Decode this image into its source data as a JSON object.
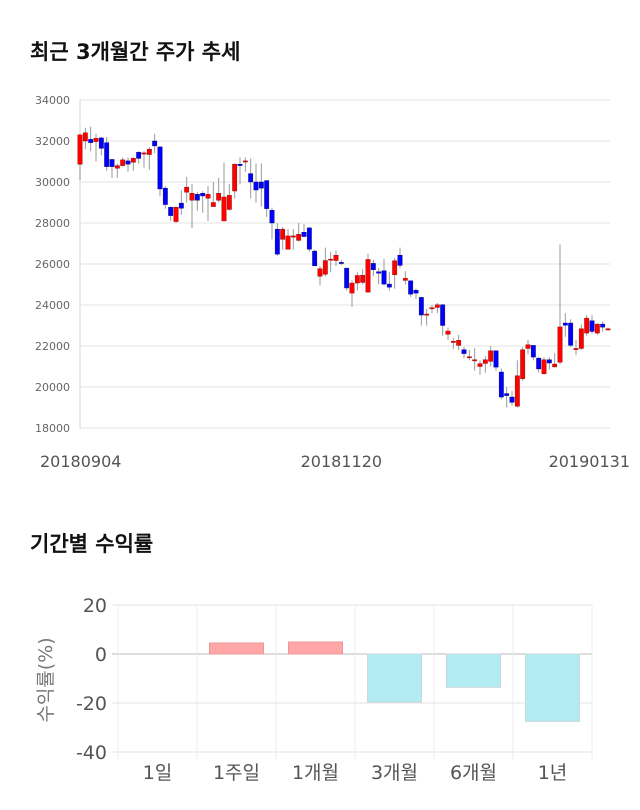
{
  "section1": {
    "title": "최근 3개월간 주가 추세"
  },
  "section2": {
    "title": "기간별 수익률"
  },
  "chart_data": [
    {
      "type": "candlestick",
      "title": "최근 3개월간 주가 추세",
      "ylim": [
        18000,
        34000
      ],
      "yticks": [
        18000,
        20000,
        22000,
        24000,
        26000,
        28000,
        30000,
        32000,
        34000
      ],
      "xtick_labels": [
        {
          "index": 0,
          "label": "20180904"
        },
        {
          "index": 49,
          "label": "20181120"
        },
        {
          "index": 99,
          "label": "20190131"
        }
      ],
      "grid": true,
      "colors": {
        "up": "#ff0000",
        "down": "#0000ff",
        "wick": "#999999"
      },
      "ohlc": [
        [
          30870,
          32350,
          30100,
          32300
        ],
        [
          32000,
          32650,
          31600,
          32400
        ],
        [
          32080,
          32700,
          31500,
          31920
        ],
        [
          31970,
          32350,
          31000,
          32130
        ],
        [
          32150,
          32200,
          31300,
          31640
        ],
        [
          31920,
          32200,
          30550,
          30750
        ],
        [
          31100,
          31100,
          30200,
          30750
        ],
        [
          30670,
          30900,
          30200,
          30800
        ],
        [
          30800,
          31200,
          30750,
          31080
        ],
        [
          31030,
          31200,
          30500,
          30870
        ],
        [
          30960,
          31200,
          30550,
          31160
        ],
        [
          31450,
          31500,
          30900,
          31150
        ],
        [
          31400,
          31500,
          30700,
          31420
        ],
        [
          31340,
          31700,
          30600,
          31600
        ],
        [
          32000,
          32350,
          31400,
          31760
        ],
        [
          31710,
          31750,
          29300,
          29660
        ],
        [
          29700,
          29800,
          28700,
          28900
        ],
        [
          28770,
          28800,
          28100,
          28360
        ],
        [
          28070,
          28800,
          28000,
          28770
        ],
        [
          28970,
          29600,
          28400,
          28720
        ],
        [
          29500,
          30250,
          29000,
          29750
        ],
        [
          29110,
          29900,
          27750,
          29450
        ],
        [
          29400,
          29500,
          28600,
          29110
        ],
        [
          29450,
          29550,
          28500,
          29320
        ],
        [
          29210,
          29800,
          28100,
          29400
        ],
        [
          28800,
          30000,
          28800,
          29000
        ],
        [
          29110,
          30200,
          29000,
          29450
        ],
        [
          28100,
          30950,
          28100,
          29270
        ],
        [
          28660,
          29900,
          28600,
          29350
        ],
        [
          29560,
          30900,
          29200,
          30870
        ],
        [
          30870,
          31200,
          29900,
          30800
        ],
        [
          31030,
          31200,
          30500,
          31030
        ],
        [
          30410,
          31150,
          29200,
          30000
        ],
        [
          30000,
          30900,
          29000,
          29610
        ],
        [
          30000,
          30900,
          28800,
          29700
        ],
        [
          30070,
          30100,
          28300,
          28700
        ],
        [
          28620,
          28750,
          27200,
          28000
        ],
        [
          27700,
          28000,
          26400,
          26480
        ],
        [
          27200,
          27800,
          26700,
          27700
        ],
        [
          26720,
          27700,
          26700,
          27370
        ],
        [
          27370,
          27700,
          26700,
          27370
        ],
        [
          27150,
          28000,
          27100,
          27450
        ],
        [
          27550,
          27950,
          27300,
          27340
        ],
        [
          27760,
          27800,
          26600,
          26720
        ],
        [
          26630,
          26700,
          25900,
          25910
        ],
        [
          25400,
          25900,
          24950,
          25770
        ],
        [
          25500,
          26800,
          25400,
          26170
        ],
        [
          26240,
          26600,
          25600,
          26240
        ],
        [
          26170,
          26650,
          25900,
          26430
        ],
        [
          26080,
          26200,
          25950,
          26030
        ],
        [
          25800,
          25800,
          24700,
          24830
        ],
        [
          24580,
          25200,
          23900,
          25070
        ],
        [
          25070,
          25600,
          24700,
          25440
        ],
        [
          25100,
          25750,
          25000,
          25450
        ],
        [
          24630,
          26500,
          24600,
          26220
        ],
        [
          26030,
          26200,
          25400,
          25720
        ],
        [
          25620,
          25800,
          25000,
          25550
        ],
        [
          25670,
          26250,
          24950,
          25020
        ],
        [
          25020,
          25600,
          24700,
          24870
        ],
        [
          25470,
          26300,
          24800,
          26160
        ],
        [
          26430,
          26800,
          25800,
          25930
        ],
        [
          25200,
          25650,
          25000,
          25300
        ],
        [
          25180,
          25200,
          24400,
          24530
        ],
        [
          24720,
          24800,
          24300,
          24580
        ],
        [
          24370,
          24400,
          23000,
          23510
        ],
        [
          23510,
          23800,
          23000,
          23560
        ],
        [
          23830,
          24000,
          23600,
          23870
        ],
        [
          23880,
          24100,
          23600,
          24010
        ],
        [
          24010,
          24050,
          22500,
          23000
        ],
        [
          22570,
          22900,
          22300,
          22730
        ],
        [
          22180,
          22400,
          21850,
          22230
        ],
        [
          22030,
          22550,
          21800,
          22280
        ],
        [
          21820,
          21950,
          21400,
          21630
        ],
        [
          21430,
          21800,
          21300,
          21480
        ],
        [
          21330,
          21900,
          20800,
          21330
        ],
        [
          21000,
          21300,
          20600,
          21140
        ],
        [
          21150,
          21500,
          20700,
          21330
        ],
        [
          21250,
          22000,
          21000,
          21770
        ],
        [
          21770,
          21780,
          20800,
          20970
        ],
        [
          20730,
          20900,
          19400,
          19510
        ],
        [
          19680,
          20000,
          19000,
          19580
        ],
        [
          19510,
          19800,
          19100,
          19250
        ],
        [
          19060,
          21300,
          19000,
          20550
        ],
        [
          20400,
          21950,
          20300,
          21820
        ],
        [
          21880,
          22300,
          21600,
          22060
        ],
        [
          22030,
          22050,
          21300,
          21460
        ],
        [
          21410,
          21450,
          20700,
          20880
        ],
        [
          20650,
          21450,
          20600,
          21330
        ],
        [
          21330,
          21450,
          20850,
          21170
        ],
        [
          20980,
          21650,
          20950,
          21120
        ],
        [
          21210,
          26950,
          21100,
          22930
        ],
        [
          23120,
          23600,
          22450,
          23010
        ],
        [
          23120,
          23300,
          21950,
          22030
        ],
        [
          21820,
          22300,
          21550,
          21880
        ],
        [
          21880,
          23050,
          21800,
          22840
        ],
        [
          22630,
          23500,
          22500,
          23360
        ],
        [
          23230,
          23500,
          22600,
          22710
        ],
        [
          22630,
          23100,
          22550,
          23070
        ],
        [
          23070,
          23200,
          22700,
          22920
        ],
        [
          22840,
          22900,
          22750,
          22840
        ]
      ]
    },
    {
      "type": "bar",
      "title": "기간별 수익률",
      "ylabel": "수익률(%)",
      "ylim": [
        -40,
        20
      ],
      "yticks": [
        -40,
        -20,
        0,
        20
      ],
      "categories": [
        "1일",
        "1주일",
        "1개월",
        "3개월",
        "6개월",
        "1년"
      ],
      "values": [
        0,
        4.5,
        4.9,
        -19.7,
        -13.6,
        -27.5
      ],
      "colors": {
        "positive": "#ffa6a6",
        "negative": "#b2ebf2"
      },
      "grid": true
    }
  ]
}
